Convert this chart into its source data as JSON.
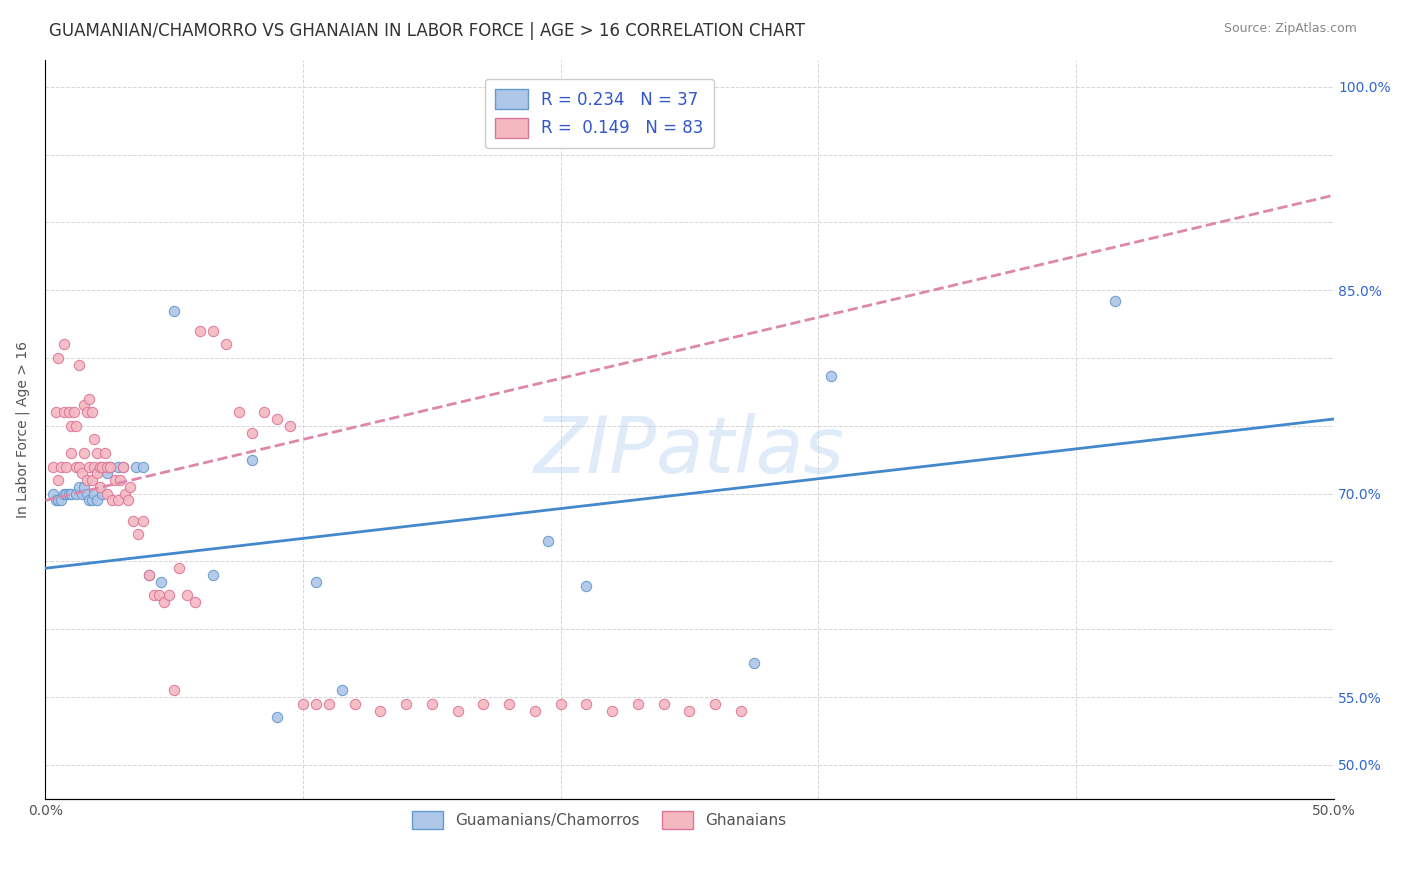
{
  "title": "GUAMANIAN/CHAMORRO VS GHANAIAN IN LABOR FORCE | AGE > 16 CORRELATION CHART",
  "source": "Source: ZipAtlas.com",
  "ylabel": "In Labor Force | Age > 16",
  "watermark": "ZIPatlas",
  "xlim": [
    0.0,
    0.5
  ],
  "ylim": [
    0.475,
    1.02
  ],
  "xtick_positions": [
    0.0,
    0.1,
    0.2,
    0.3,
    0.4,
    0.5
  ],
  "xticklabels": [
    "0.0%",
    "",
    "",
    "",
    "",
    "50.0%"
  ],
  "ytick_positions": [
    0.5,
    0.55,
    0.6,
    0.65,
    0.7,
    0.75,
    0.8,
    0.85,
    0.9,
    0.95,
    1.0
  ],
  "yticklabels_right": [
    "50.0%",
    "55.0%",
    "",
    "",
    "70.0%",
    "",
    "",
    "85.0%",
    "",
    "",
    "100.0%"
  ],
  "legend_text_color": "#3355cc",
  "guam_color": "#aec6e8",
  "ghana_color": "#f4b8c1",
  "guam_edge": "#6699cc",
  "ghana_edge": "#dd7799",
  "trend_guam_color": "#4488cc",
  "trend_ghana_color": "#dd88aa",
  "background_color": "#ffffff",
  "grid_color": "#cccccc",
  "title_fontsize": 12,
  "tick_fontsize": 10,
  "legend_label_guam": "R = 0.234   N = 37",
  "legend_label_ghana": "R =  0.149   N = 83",
  "bottom_legend_guam": "Guamanians/Chamorros",
  "bottom_legend_ghana": "Ghanaians",
  "guam_trend_x": [
    0.0,
    0.5
  ],
  "guam_trend_y": [
    0.645,
    0.755
  ],
  "ghana_trend_x": [
    0.0,
    0.5
  ],
  "ghana_trend_y": [
    0.695,
    0.92
  ],
  "guam_x": [
    0.003,
    0.004,
    0.005,
    0.006,
    0.007,
    0.008,
    0.009,
    0.01,
    0.012,
    0.013,
    0.014,
    0.015,
    0.016,
    0.017,
    0.018,
    0.019,
    0.02,
    0.022,
    0.024,
    0.025,
    0.028,
    0.03,
    0.035,
    0.038,
    0.04,
    0.045,
    0.05,
    0.065,
    0.08,
    0.09,
    0.105,
    0.115,
    0.195,
    0.21,
    0.275,
    0.305,
    0.415
  ],
  "guam_y": [
    0.7,
    0.695,
    0.695,
    0.695,
    0.7,
    0.7,
    0.7,
    0.7,
    0.7,
    0.705,
    0.7,
    0.705,
    0.7,
    0.695,
    0.695,
    0.7,
    0.695,
    0.7,
    0.715,
    0.72,
    0.72,
    0.72,
    0.72,
    0.72,
    0.64,
    0.635,
    0.835,
    0.64,
    0.725,
    0.535,
    0.635,
    0.555,
    0.665,
    0.632,
    0.575,
    0.787,
    0.842
  ],
  "ghana_x": [
    0.003,
    0.004,
    0.005,
    0.005,
    0.006,
    0.007,
    0.007,
    0.008,
    0.009,
    0.01,
    0.01,
    0.011,
    0.012,
    0.012,
    0.013,
    0.013,
    0.014,
    0.015,
    0.015,
    0.016,
    0.016,
    0.017,
    0.017,
    0.018,
    0.018,
    0.019,
    0.019,
    0.02,
    0.02,
    0.021,
    0.021,
    0.022,
    0.023,
    0.024,
    0.024,
    0.025,
    0.026,
    0.027,
    0.028,
    0.029,
    0.03,
    0.031,
    0.032,
    0.033,
    0.034,
    0.036,
    0.038,
    0.04,
    0.042,
    0.044,
    0.046,
    0.048,
    0.05,
    0.052,
    0.055,
    0.058,
    0.06,
    0.065,
    0.07,
    0.075,
    0.08,
    0.085,
    0.09,
    0.095,
    0.1,
    0.105,
    0.11,
    0.12,
    0.13,
    0.14,
    0.15,
    0.16,
    0.17,
    0.18,
    0.19,
    0.2,
    0.21,
    0.22,
    0.23,
    0.24,
    0.25,
    0.26,
    0.27
  ],
  "ghana_y": [
    0.72,
    0.76,
    0.71,
    0.8,
    0.72,
    0.76,
    0.81,
    0.72,
    0.76,
    0.73,
    0.75,
    0.76,
    0.72,
    0.75,
    0.72,
    0.795,
    0.715,
    0.73,
    0.765,
    0.71,
    0.76,
    0.77,
    0.72,
    0.71,
    0.76,
    0.74,
    0.72,
    0.715,
    0.73,
    0.72,
    0.705,
    0.72,
    0.73,
    0.72,
    0.7,
    0.72,
    0.695,
    0.71,
    0.695,
    0.71,
    0.72,
    0.7,
    0.695,
    0.705,
    0.68,
    0.67,
    0.68,
    0.64,
    0.625,
    0.625,
    0.62,
    0.625,
    0.555,
    0.645,
    0.625,
    0.62,
    0.82,
    0.82,
    0.81,
    0.76,
    0.745,
    0.76,
    0.755,
    0.75,
    0.545,
    0.545,
    0.545,
    0.545,
    0.54,
    0.545,
    0.545,
    0.54,
    0.545,
    0.545,
    0.54,
    0.545,
    0.545,
    0.54,
    0.545,
    0.545,
    0.54,
    0.545,
    0.54
  ]
}
